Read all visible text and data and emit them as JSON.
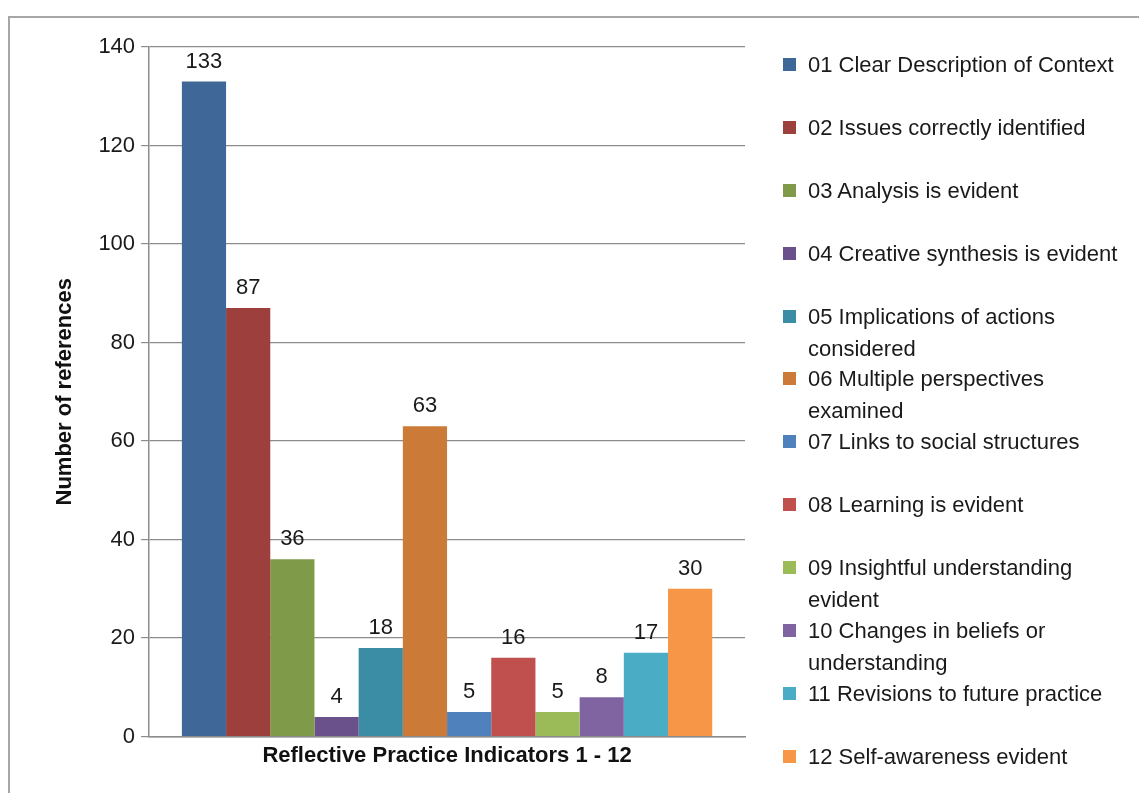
{
  "chart_data": {
    "type": "bar",
    "xlabel": "Reflective Practice Indicators 1 - 12",
    "ylabel": "Number of references",
    "categories": [
      null
    ],
    "series": [
      {
        "name": "01 Clear Description of Context",
        "color": "#3f6898",
        "values": [
          133
        ]
      },
      {
        "name": "02 Issues correctly identified",
        "color": "#9d3f3d",
        "values": [
          87
        ]
      },
      {
        "name": "03 Analysis is evident",
        "color": "#7f9a48",
        "values": [
          36
        ]
      },
      {
        "name": "04 Creative synthesis is evident",
        "color": "#6a518b",
        "values": [
          4
        ]
      },
      {
        "name": "05 Implications of actions considered",
        "color": "#3b8ca5",
        "values": [
          18
        ]
      },
      {
        "name": "06 Multiple perspectives examined",
        "color": "#cb7a38",
        "values": [
          63
        ]
      },
      {
        "name": "07 Links to social structures",
        "color": "#4f81bd",
        "values": [
          5
        ]
      },
      {
        "name": "08 Learning is evident",
        "color": "#c0504d",
        "values": [
          16
        ]
      },
      {
        "name": "09 Insightful understanding evident",
        "color": "#9bbb59",
        "values": [
          5
        ]
      },
      {
        "name": "10 Changes in beliefs or understanding",
        "color": "#8064a2",
        "values": [
          8
        ]
      },
      {
        "name": "11 Revisions to future practice",
        "color": "#4bacc6",
        "values": [
          17
        ]
      },
      {
        "name": "12 Self-awareness evident",
        "color": "#f79646",
        "values": [
          30
        ]
      }
    ],
    "ylim": [
      0,
      140
    ],
    "yticks": [
      0,
      20,
      40,
      60,
      80,
      100,
      120,
      140
    ],
    "grid": "y",
    "legend": "right",
    "tick_labels": "y",
    "data_labels": true
  }
}
